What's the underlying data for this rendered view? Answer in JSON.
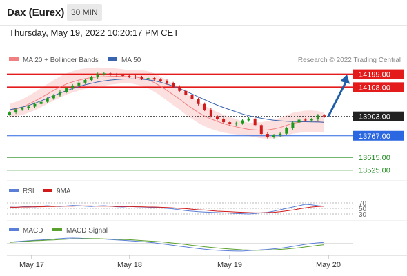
{
  "header": {
    "symbol": "Dax (Eurex)",
    "timeframe": "30 MIN"
  },
  "timestamp": "Thursday, May 19, 2022 10:20:17 PM CET",
  "legend": {
    "bb": "MA 20 + Bollinger Bands",
    "ma50": "MA 50",
    "credit": "Research © 2022 Trading Central"
  },
  "colors": {
    "resistance": "#e31b1b",
    "support": "#2a67e0",
    "target": "#1e8a1e",
    "last": "#222222",
    "candle_up": "#1a9a1a",
    "candle_down": "#d11a1a",
    "bb_fill": "#fbd4d4",
    "ma20": "#f08080",
    "ma50": "#3a64b0",
    "arrow": "#1f5faa"
  },
  "chart_data": [
    {
      "type": "candlestick",
      "title": "Dax (Eurex) 30 MIN",
      "x_ticks": [
        "May 17",
        "May 18",
        "May 19",
        "May 20"
      ],
      "ylim": [
        13480,
        14260
      ],
      "series": [
        {
          "name": "Price",
          "close": [
            13930,
            13952,
            13960,
            13972,
            13990,
            14005,
            14030,
            14050,
            14075,
            14100,
            14120,
            14140,
            14158,
            14178,
            14200,
            14205,
            14197,
            14192,
            14188,
            14183,
            14178,
            14168,
            14172,
            14162,
            14152,
            14135,
            14112,
            14082,
            14055,
            14025,
            13990,
            13950,
            13905,
            13885,
            13862,
            13848,
            13855,
            13875,
            13888,
            13842,
            13780,
            13758,
            13770,
            13782,
            13820,
            13860,
            13880,
            13875,
            13882,
            13910,
            13903
          ]
        },
        {
          "name": "MA 20",
          "values": [
            13945,
            13955,
            13968,
            13988,
            14010,
            14035,
            14060,
            14085,
            14110,
            14130,
            14145,
            14158,
            14168,
            14175,
            14180,
            14182,
            14184,
            14185,
            14184,
            14182,
            14179,
            14172,
            14160,
            14140,
            14115,
            14085,
            14055,
            14025,
            13990,
            13960,
            13930,
            13905,
            13885,
            13868,
            13852,
            13840,
            13830,
            13820,
            13812,
            13808,
            13806,
            13808,
            13815,
            13825,
            13840,
            13855,
            13862,
            13868,
            13870,
            13866,
            13860
          ]
        },
        {
          "name": "MA 50",
          "values": [
            13950,
            13958,
            13968,
            13980,
            13995,
            14012,
            14030,
            14048,
            14066,
            14083,
            14098,
            14112,
            14125,
            14135,
            14145,
            14152,
            14158,
            14162,
            14165,
            14166,
            14166,
            14164,
            14160,
            14153,
            14143,
            14130,
            14115,
            14098,
            14080,
            14060,
            14040,
            14020,
            14000,
            13982,
            13965,
            13950,
            13935,
            13920,
            13908,
            13898,
            13890,
            13882,
            13876,
            13872,
            13869,
            13867,
            13866,
            13865,
            13864,
            13863,
            13862
          ]
        }
      ],
      "levels": [
        {
          "value": 14199.0,
          "label": "14199.00",
          "kind": "resistance"
        },
        {
          "value": 14108.0,
          "label": "14108.00",
          "kind": "resistance"
        },
        {
          "value": 13903.0,
          "label": "13903.00",
          "kind": "last"
        },
        {
          "value": 13767.0,
          "label": "13767.00",
          "kind": "support"
        },
        {
          "value": 13615.0,
          "label": "13615.00",
          "kind": "target"
        },
        {
          "value": 13525.0,
          "label": "13525.00",
          "kind": "target"
        }
      ]
    },
    {
      "type": "line",
      "title": "RSI",
      "legend": [
        "RSI",
        "9MA"
      ],
      "y_ticks": [
        "70",
        "50",
        "30"
      ],
      "series": [
        {
          "name": "RSI",
          "values": [
            55,
            54,
            56,
            57,
            55,
            58,
            60,
            58,
            57,
            59,
            61,
            60,
            58,
            57,
            59,
            60,
            58,
            56,
            55,
            57,
            56,
            55,
            54,
            53,
            52,
            50,
            48,
            45,
            42,
            40,
            38,
            37,
            36,
            35,
            34,
            33,
            32,
            31,
            30,
            32,
            34,
            36,
            40,
            45,
            50,
            55,
            60,
            65,
            63,
            60,
            58
          ]
        },
        {
          "name": "9MA",
          "values": [
            54,
            54,
            55,
            55,
            56,
            56,
            57,
            57,
            58,
            58,
            58,
            59,
            59,
            59,
            58,
            58,
            58,
            57,
            57,
            57,
            56,
            56,
            55,
            55,
            54,
            53,
            52,
            50,
            49,
            47,
            45,
            44,
            42,
            40,
            39,
            38,
            37,
            36,
            35,
            34,
            34,
            35,
            36,
            38,
            41,
            44,
            48,
            52,
            55,
            57,
            58
          ]
        }
      ]
    },
    {
      "type": "line",
      "title": "MACD",
      "legend": [
        "MACD",
        "MACD Signal"
      ],
      "series": [
        {
          "name": "MACD",
          "values": [
            5,
            8,
            10,
            12,
            14,
            16,
            18,
            20,
            22,
            24,
            25,
            24,
            23,
            22,
            21,
            20,
            18,
            16,
            14,
            12,
            10,
            8,
            5,
            2,
            -2,
            -6,
            -10,
            -14,
            -18,
            -22,
            -26,
            -29,
            -32,
            -34,
            -36,
            -37,
            -38,
            -38,
            -36,
            -34,
            -32,
            -30,
            -27,
            -24,
            -20,
            -15,
            -10,
            -5,
            -1,
            2,
            4
          ]
        },
        {
          "name": "MACD Signal",
          "values": [
            4,
            6,
            8,
            10,
            12,
            13,
            15,
            16,
            18,
            19,
            21,
            21,
            22,
            22,
            22,
            21,
            20,
            19,
            18,
            17,
            15,
            13,
            11,
            9,
            7,
            4,
            1,
            -2,
            -6,
            -10,
            -13,
            -17,
            -20,
            -23,
            -26,
            -28,
            -30,
            -32,
            -33,
            -34,
            -34,
            -33,
            -32,
            -30,
            -28,
            -25,
            -22,
            -18,
            -14,
            -10,
            -7
          ]
        }
      ]
    }
  ]
}
